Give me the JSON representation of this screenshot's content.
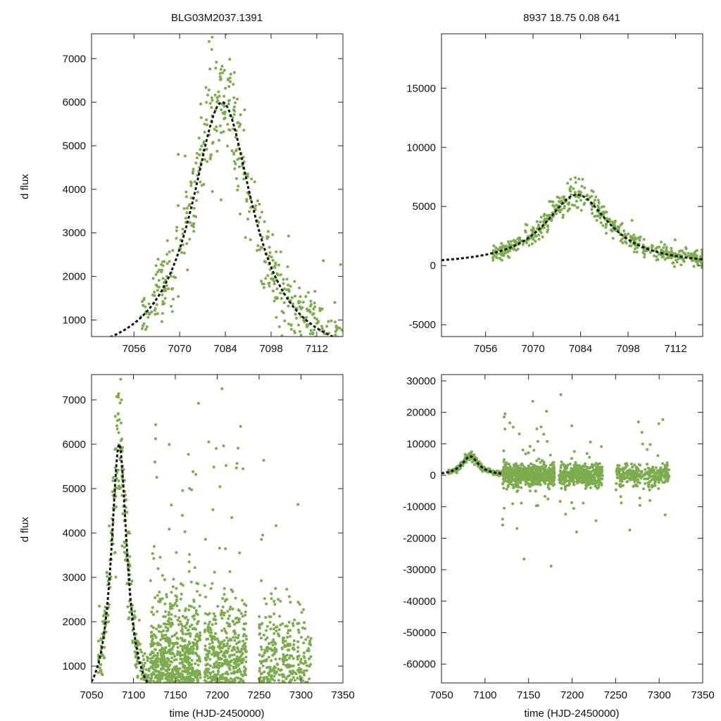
{
  "figure": {
    "title_left": "BLG03M2037.1391",
    "title_right": "8937  18.75  0.08  641",
    "ylabel": "d flux",
    "xlabel": "time (HJD-2450000)"
  },
  "chart_data": [
    {
      "id": "top-left",
      "type": "scatter",
      "title": "BLG03M2037.1391",
      "xlabel": "",
      "ylabel": "d flux",
      "xlim": [
        7043,
        7120
      ],
      "ylim": [
        620,
        7570
      ],
      "xticks": [
        7056,
        7070,
        7084,
        7098,
        7112
      ],
      "yticks": [
        1000,
        2000,
        3000,
        4000,
        5000,
        6000,
        7000
      ],
      "fit": {
        "t0": 7083,
        "peak": 6000,
        "base": 0,
        "tau": 11.5,
        "style": "dashed"
      }
    },
    {
      "id": "top-right",
      "type": "scatter",
      "title": "8937  18.75  0.08  641",
      "xlabel": "",
      "ylabel": "",
      "xlim": [
        7043,
        7120
      ],
      "ylim": [
        -6000,
        19600
      ],
      "xticks": [
        7056,
        7070,
        7084,
        7098,
        7112
      ],
      "yticks": [
        -5000,
        0,
        5000,
        10000,
        15000
      ],
      "fit": {
        "t0": 7083,
        "peak": 6000,
        "base": 0,
        "tau": 11.5,
        "style": "dashed"
      }
    },
    {
      "id": "bottom-left",
      "type": "scatter",
      "title": "",
      "xlabel": "time (HJD-2450000)",
      "ylabel": "d flux",
      "xlim": [
        7050,
        7350
      ],
      "ylim": [
        620,
        7570
      ],
      "xticks": [
        7050,
        7100,
        7150,
        7200,
        7250,
        7300,
        7350
      ],
      "yticks": [
        1000,
        2000,
        3000,
        4000,
        5000,
        6000,
        7000
      ],
      "fit": {
        "t0": 7083,
        "peak": 6000,
        "base": 0,
        "tau": 11.5,
        "style": "dashed"
      }
    },
    {
      "id": "bottom-right",
      "type": "scatter",
      "title": "",
      "xlabel": "time (HJD-2450000)",
      "ylabel": "",
      "xlim": [
        7050,
        7350
      ],
      "ylim": [
        -66000,
        32000
      ],
      "xticks": [
        7050,
        7100,
        7150,
        7200,
        7250,
        7300,
        7350
      ],
      "yticks": [
        -60000,
        -50000,
        -40000,
        -30000,
        -20000,
        -10000,
        0,
        10000,
        20000,
        30000
      ],
      "fit": {
        "t0": 7083,
        "peak": 6000,
        "base": 0,
        "tau": 11.5,
        "style": "dashed",
        "fit_range": [
          7050,
          7120
        ]
      }
    }
  ]
}
